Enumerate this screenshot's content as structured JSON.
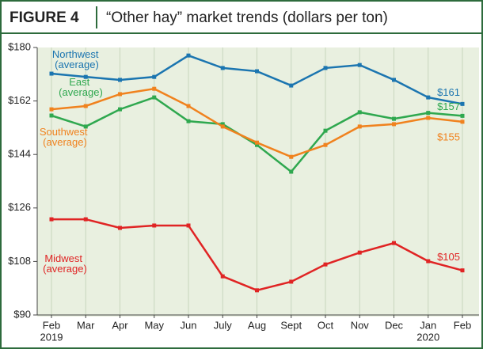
{
  "header": {
    "figure": "FIGURE 4",
    "title": "“Other hay” market trends (dollars per ton)"
  },
  "chart_data": {
    "type": "line",
    "categories": [
      "Feb",
      "Mar",
      "Apr",
      "May",
      "Jun",
      "July",
      "Aug",
      "Sept",
      "Oct",
      "Nov",
      "Dec",
      "Jan",
      "Feb"
    ],
    "x_sublabels": [
      "2019",
      null,
      null,
      null,
      null,
      null,
      null,
      null,
      null,
      null,
      null,
      "2020",
      null
    ],
    "ylim": [
      90,
      180
    ],
    "yticks": [
      {
        "value": 90,
        "label": "$90"
      },
      {
        "value": 108,
        "label": "$108"
      },
      {
        "value": 126,
        "label": "$126"
      },
      {
        "value": 144,
        "label": "$144"
      },
      {
        "value": 162,
        "label": "$162"
      },
      {
        "value": 180,
        "label": "$180"
      }
    ],
    "grid": true,
    "series": [
      {
        "name": "Northwest (average)",
        "color": "#1b75b0",
        "values": [
          171.2,
          170.1,
          169.1,
          170.1,
          177.3,
          173.1,
          172,
          167.2,
          173.1,
          174.1,
          169.1,
          163.2,
          161
        ],
        "value_labels": [
          null,
          null,
          null,
          null,
          null,
          null,
          null,
          null,
          null,
          null,
          null,
          null,
          "$161"
        ]
      },
      {
        "name": "East (average)",
        "color": "#2fa84f",
        "values": [
          157.1,
          153.4,
          159.2,
          163.2,
          155.2,
          154.2,
          147.2,
          138.2,
          152,
          158.2,
          156,
          158,
          157
        ],
        "value_labels": [
          null,
          null,
          null,
          null,
          null,
          null,
          null,
          null,
          null,
          null,
          null,
          null,
          "$157"
        ]
      },
      {
        "name": "Southwest (average)",
        "color": "#f0821e",
        "values": [
          159.2,
          160.3,
          164.3,
          166.1,
          160.3,
          153.4,
          148,
          143.2,
          147.2,
          153.4,
          154.2,
          156.3,
          155
        ],
        "value_labels": [
          null,
          null,
          null,
          null,
          null,
          null,
          null,
          null,
          null,
          null,
          null,
          null,
          "$155"
        ]
      },
      {
        "name": "Midwest (average)",
        "color": "#e02424",
        "values": [
          122.2,
          122.2,
          119.3,
          120.1,
          120.1,
          103,
          98.3,
          101.2,
          107,
          111,
          114.2,
          108.1,
          105
        ],
        "value_labels": [
          null,
          null,
          null,
          null,
          null,
          null,
          null,
          null,
          null,
          null,
          null,
          null,
          "$105"
        ]
      }
    ]
  }
}
